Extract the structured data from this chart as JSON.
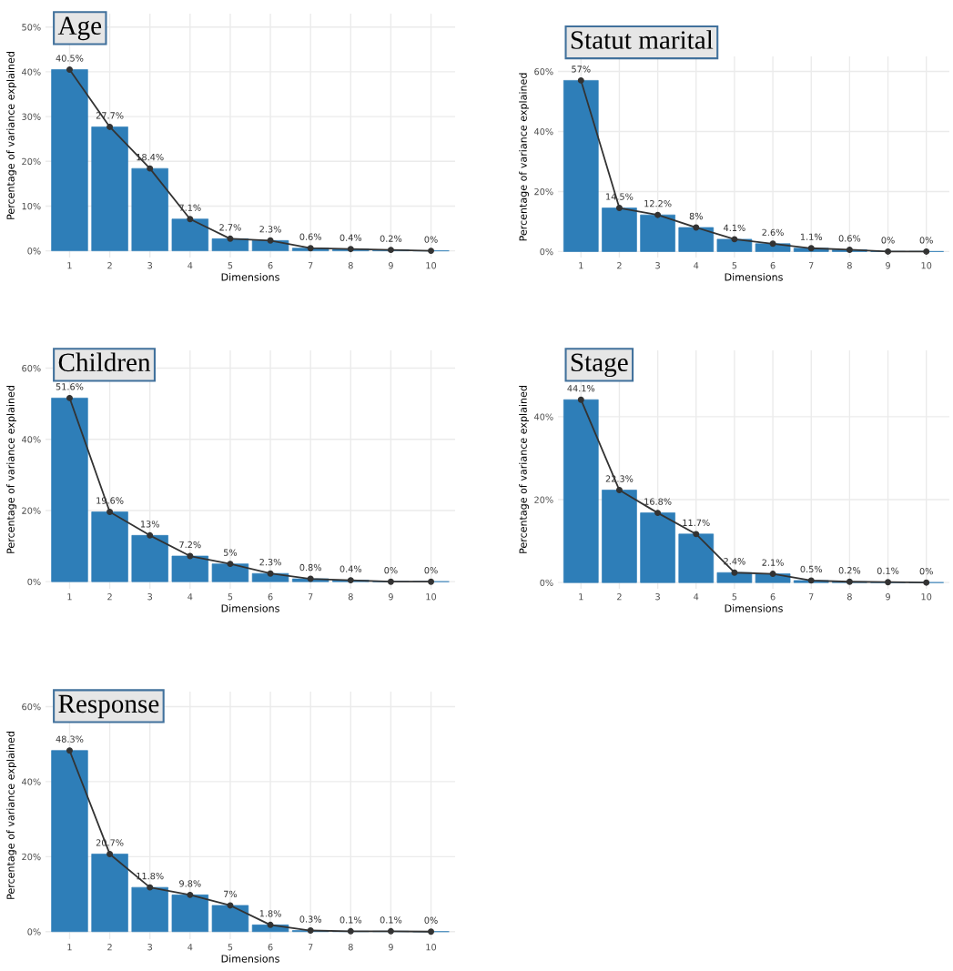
{
  "chart_data": [
    {
      "type": "bar",
      "title": "Age",
      "xlabel": "Dimensions",
      "ylabel": "Percentage of variance explained",
      "categories": [
        "1",
        "2",
        "3",
        "4",
        "5",
        "6",
        "7",
        "8",
        "9",
        "10"
      ],
      "ylim": [
        -1.5,
        53
      ],
      "yticks": [
        {
          "value": 0,
          "label": "0%"
        },
        {
          "value": 10,
          "label": "10%"
        },
        {
          "value": 20,
          "label": "20%"
        },
        {
          "value": 30,
          "label": "30%"
        },
        {
          "value": 40,
          "label": "40%"
        },
        {
          "value": 50,
          "label": "50%"
        }
      ],
      "grid": true,
      "series": [
        {
          "color": "#2e7eb8",
          "values": [
            40.5,
            27.7,
            18.4,
            7.1,
            2.7,
            2.3,
            0.6,
            0.4,
            0.2,
            0
          ],
          "value_labels": [
            "40.5%",
            "27.7%",
            "18.4%",
            "7.1%",
            "2.7%",
            "2.3%",
            "0.6%",
            "0.4%",
            "0.2%",
            "0%"
          ]
        },
        {
          "type": "line",
          "color": "#333333",
          "marker": "circle",
          "values": [
            40.5,
            27.7,
            18.4,
            7.1,
            2.7,
            2.3,
            0.6,
            0.4,
            0.2,
            0
          ]
        }
      ]
    },
    {
      "type": "bar",
      "title": "Statut marital",
      "xlabel": "Dimensions",
      "ylabel": "Percentage of variance explained",
      "categories": [
        "1",
        "2",
        "3",
        "4",
        "5",
        "6",
        "7",
        "8",
        "9",
        "10"
      ],
      "ylim": [
        -2,
        65
      ],
      "yticks": [
        {
          "value": 0,
          "label": "0%"
        },
        {
          "value": 20,
          "label": "20%"
        },
        {
          "value": 40,
          "label": "40%"
        },
        {
          "value": 60,
          "label": "60%"
        }
      ],
      "grid": true,
      "series": [
        {
          "color": "#2e7eb8",
          "values": [
            57,
            14.5,
            12.2,
            8,
            4.1,
            2.6,
            1.1,
            0.6,
            0,
            0
          ],
          "value_labels": [
            "57%",
            "14.5%",
            "12.2%",
            "8%",
            "4.1%",
            "2.6%",
            "1.1%",
            "0.6%",
            "0%",
            "0%"
          ]
        },
        {
          "type": "line",
          "color": "#333333",
          "marker": "circle",
          "values": [
            57,
            14.5,
            12.2,
            8,
            4.1,
            2.6,
            1.1,
            0.6,
            0,
            0
          ]
        }
      ]
    },
    {
      "type": "bar",
      "title": "Children",
      "xlabel": "Dimensions",
      "ylabel": "Percentage of variance explained",
      "categories": [
        "1",
        "2",
        "3",
        "4",
        "5",
        "6",
        "7",
        "8",
        "9",
        "10"
      ],
      "ylim": [
        -2,
        65
      ],
      "yticks": [
        {
          "value": 0,
          "label": "0%"
        },
        {
          "value": 20,
          "label": "20%"
        },
        {
          "value": 40,
          "label": "40%"
        },
        {
          "value": 60,
          "label": "60%"
        }
      ],
      "grid": true,
      "series": [
        {
          "color": "#2e7eb8",
          "values": [
            51.6,
            19.6,
            13,
            7.2,
            5,
            2.3,
            0.8,
            0.4,
            0,
            0
          ],
          "value_labels": [
            "51.6%",
            "19.6%",
            "13%",
            "7.2%",
            "5%",
            "2.3%",
            "0.8%",
            "0.4%",
            "0%",
            "0%"
          ]
        },
        {
          "type": "line",
          "color": "#333333",
          "marker": "circle",
          "values": [
            51.6,
            19.6,
            13,
            7.2,
            5,
            2.3,
            0.8,
            0.4,
            0,
            0
          ]
        }
      ]
    },
    {
      "type": "bar",
      "title": "Stage",
      "xlabel": "Dimensions",
      "ylabel": "Percentage of variance explained",
      "categories": [
        "1",
        "2",
        "3",
        "4",
        "5",
        "6",
        "7",
        "8",
        "9",
        "10"
      ],
      "ylim": [
        -1.5,
        56
      ],
      "yticks": [
        {
          "value": 0,
          "label": "0%"
        },
        {
          "value": 20,
          "label": "20%"
        },
        {
          "value": 40,
          "label": "40%"
        }
      ],
      "grid": true,
      "series": [
        {
          "color": "#2e7eb8",
          "values": [
            44.1,
            22.3,
            16.8,
            11.7,
            2.4,
            2.1,
            0.5,
            0.2,
            0.1,
            0
          ],
          "value_labels": [
            "44.1%",
            "22.3%",
            "16.8%",
            "11.7%",
            "2.4%",
            "2.1%",
            "0.5%",
            "0.2%",
            "0.1%",
            "0%"
          ]
        },
        {
          "type": "line",
          "color": "#333333",
          "marker": "circle",
          "values": [
            44.1,
            22.3,
            16.8,
            11.7,
            2.4,
            2.1,
            0.5,
            0.2,
            0.1,
            0
          ]
        }
      ]
    },
    {
      "type": "bar",
      "title": "Response",
      "xlabel": "Dimensions",
      "ylabel": "Percentage of variance explained",
      "categories": [
        "1",
        "2",
        "3",
        "4",
        "5",
        "6",
        "7",
        "8",
        "9",
        "10"
      ],
      "ylim": [
        -2,
        64
      ],
      "yticks": [
        {
          "value": 0,
          "label": "0%"
        },
        {
          "value": 20,
          "label": "20%"
        },
        {
          "value": 40,
          "label": "40%"
        },
        {
          "value": 60,
          "label": "60%"
        }
      ],
      "grid": true,
      "series": [
        {
          "color": "#2e7eb8",
          "values": [
            48.3,
            20.7,
            11.8,
            9.8,
            7,
            1.8,
            0.3,
            0.1,
            0.1,
            0
          ],
          "value_labels": [
            "48.3%",
            "20.7%",
            "11.8%",
            "9.8%",
            "7%",
            "1.8%",
            "0.3%",
            "0.1%",
            "0.1%",
            "0%"
          ]
        },
        {
          "type": "line",
          "color": "#333333",
          "marker": "circle",
          "values": [
            48.3,
            20.7,
            11.8,
            9.8,
            7,
            1.8,
            0.3,
            0.1,
            0.1,
            0
          ]
        }
      ]
    }
  ]
}
